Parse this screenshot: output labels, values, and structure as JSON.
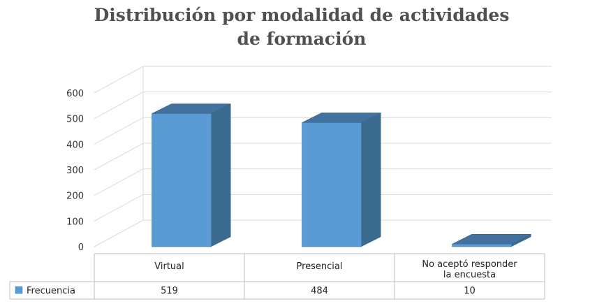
{
  "chart_data": {
    "type": "bar",
    "title_lines": [
      "Distribución por modalidad de actividades",
      "de formación"
    ],
    "categories": [
      {
        "lines": [
          "Virtual"
        ]
      },
      {
        "lines": [
          "Presencial"
        ]
      },
      {
        "lines": [
          "No aceptó responder",
          "la encuesta"
        ]
      }
    ],
    "series": [
      {
        "name": "Frecuencia",
        "values": [
          519,
          484,
          10
        ],
        "value_labels": [
          "519",
          "484",
          "10"
        ]
      }
    ],
    "ylim": [
      0,
      600
    ],
    "yticks": [
      "0",
      "100",
      "200",
      "300",
      "400",
      "500",
      "600"
    ],
    "grid": true,
    "legend_placement": "data-table",
    "bar_colors": {
      "front": "#5b9bd5",
      "side": "#3a6b8f",
      "top": "#41719c"
    }
  }
}
